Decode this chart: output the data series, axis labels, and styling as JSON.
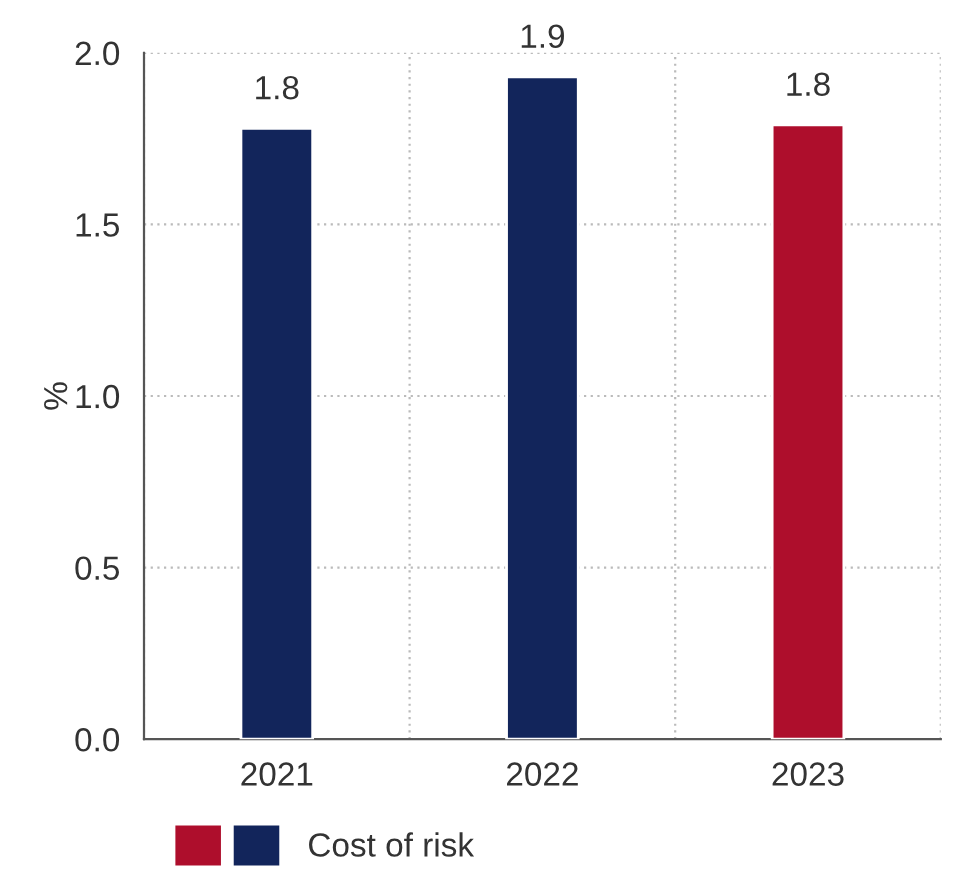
{
  "chart_data": {
    "type": "bar",
    "ylabel": "%",
    "categories": [
      "2021",
      "2022",
      "2023"
    ],
    "series": [
      {
        "name": "Cost of risk",
        "values": [
          1.78,
          1.93,
          1.79
        ],
        "colors": [
          "#12255b",
          "#12255b",
          "#ae0e2c"
        ],
        "value_labels": [
          "1.8",
          "1.9",
          "1.8"
        ]
      }
    ],
    "ylim": [
      0,
      2.0
    ],
    "yticks": [
      {
        "value": 0,
        "label": "0.0"
      },
      {
        "value": 0.5,
        "label": "0.5"
      },
      {
        "value": 1.0,
        "label": "1.0"
      },
      {
        "value": 1.5,
        "label": "1.5"
      },
      {
        "value": 2.0,
        "label": "2.0"
      }
    ],
    "grid": true,
    "legend": "bottom left"
  }
}
